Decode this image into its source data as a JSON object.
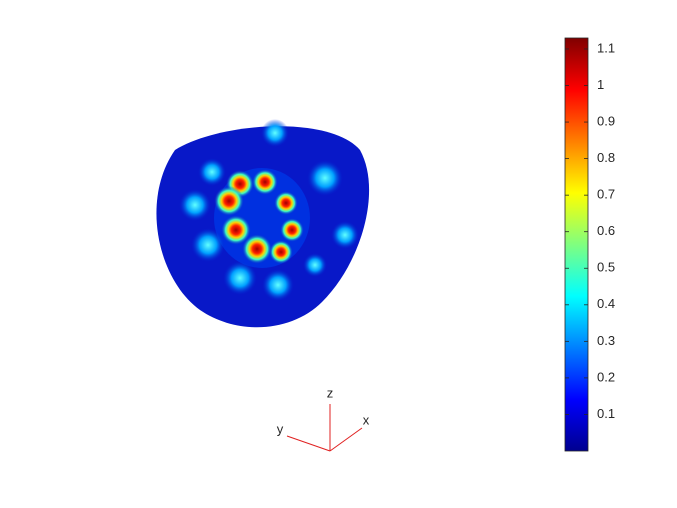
{
  "chart_data": {
    "type": "surface",
    "colormap": "jet",
    "clim": [
      0,
      1.13
    ],
    "colorbar_ticks": [
      0.1,
      0.2,
      0.3,
      0.4,
      0.5,
      0.6,
      0.7,
      0.8,
      0.9,
      1,
      1.1
    ],
    "axis_labels": {
      "x": "x",
      "y": "y",
      "z": "z"
    }
  }
}
